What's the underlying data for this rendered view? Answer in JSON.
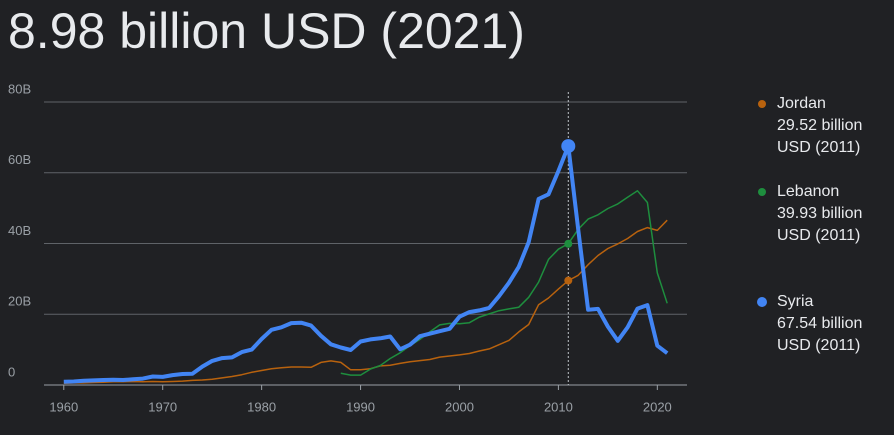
{
  "chart_data": {
    "type": "line",
    "title": "8.98 billion USD (2021)",
    "x": [
      1960,
      1961,
      1962,
      1963,
      1964,
      1965,
      1966,
      1967,
      1968,
      1969,
      1970,
      1971,
      1972,
      1973,
      1974,
      1975,
      1976,
      1977,
      1978,
      1979,
      1980,
      1981,
      1982,
      1983,
      1984,
      1985,
      1986,
      1987,
      1988,
      1989,
      1990,
      1991,
      1992,
      1993,
      1994,
      1995,
      1996,
      1997,
      1998,
      1999,
      2000,
      2001,
      2002,
      2003,
      2004,
      2005,
      2006,
      2007,
      2008,
      2009,
      2010,
      2011,
      2012,
      2013,
      2014,
      2015,
      2016,
      2017,
      2018,
      2019,
      2020,
      2021
    ],
    "series": [
      {
        "name": "Jordan",
        "color": "#b8620e",
        "width": 1.5,
        "highlight_label": "29.52 billion USD (2011)",
        "values": [
          0.5,
          0.6,
          0.6,
          0.7,
          0.8,
          0.9,
          0.9,
          1.0,
          0.9,
          1.0,
          0.9,
          1.0,
          1.1,
          1.3,
          1.4,
          1.6,
          2.0,
          2.4,
          2.9,
          3.6,
          4.1,
          4.6,
          4.9,
          5.1,
          5.1,
          5.0,
          6.4,
          6.8,
          6.4,
          4.3,
          4.3,
          4.6,
          5.4,
          5.6,
          6.1,
          6.6,
          6.9,
          7.2,
          7.9,
          8.2,
          8.5,
          8.9,
          9.6,
          10.2,
          11.4,
          12.6,
          15.0,
          17.1,
          22.7,
          24.6,
          27.1,
          29.52,
          31.0,
          34.0,
          36.6,
          38.6,
          39.9,
          41.4,
          43.4,
          44.5,
          43.7,
          46.6
        ]
      },
      {
        "name": "Lebanon",
        "color": "#1e8e3e",
        "width": 1.5,
        "highlight_label": "39.93 billion USD (2011)",
        "values": [
          null,
          null,
          null,
          null,
          null,
          null,
          null,
          null,
          null,
          null,
          null,
          null,
          null,
          null,
          null,
          null,
          null,
          null,
          null,
          null,
          null,
          null,
          null,
          null,
          null,
          null,
          null,
          null,
          3.3,
          2.8,
          2.8,
          4.5,
          5.5,
          7.5,
          9.1,
          11.1,
          12.9,
          15.0,
          17.0,
          17.4,
          17.3,
          17.6,
          19.2,
          20.1,
          21.0,
          21.5,
          22.0,
          24.8,
          29.1,
          35.5,
          38.4,
          39.93,
          44.0,
          46.9,
          48.1,
          49.9,
          51.2,
          53.1,
          54.9,
          51.6,
          31.7,
          23.1
        ]
      },
      {
        "name": "Syria",
        "color": "#4285f4",
        "width": 4,
        "highlight_label": "67.54 billion USD (2011)",
        "values": [
          0.9,
          1.0,
          1.2,
          1.3,
          1.4,
          1.5,
          1.4,
          1.6,
          1.8,
          2.4,
          2.3,
          2.8,
          3.1,
          3.2,
          5.2,
          6.8,
          7.6,
          7.8,
          9.3,
          10.0,
          13.0,
          15.6,
          16.3,
          17.5,
          17.6,
          16.8,
          13.9,
          11.5,
          10.6,
          9.9,
          12.3,
          12.9,
          13.2,
          13.7,
          10.1,
          11.4,
          13.8,
          14.5,
          15.2,
          15.9,
          19.3,
          20.6,
          21.1,
          21.8,
          25.1,
          28.9,
          33.4,
          40.4,
          52.6,
          53.9,
          60.5,
          67.54,
          44.0,
          21.3,
          21.5,
          16.5,
          12.5,
          16.3,
          21.6,
          22.6,
          11.1,
          8.98
        ]
      }
    ],
    "highlight_x": 2011,
    "xlim": [
      1958,
      2023
    ],
    "xticks": [
      1960,
      1970,
      1980,
      1990,
      2000,
      2010,
      2020
    ],
    "ylim": [
      0,
      80
    ],
    "yticks": [
      0,
      {
        "value": 20,
        "label": "20B"
      },
      {
        "value": 40,
        "label": "40B"
      },
      {
        "value": 60,
        "label": "60B"
      },
      {
        "value": 80,
        "label": "80B"
      }
    ],
    "grid": true
  }
}
